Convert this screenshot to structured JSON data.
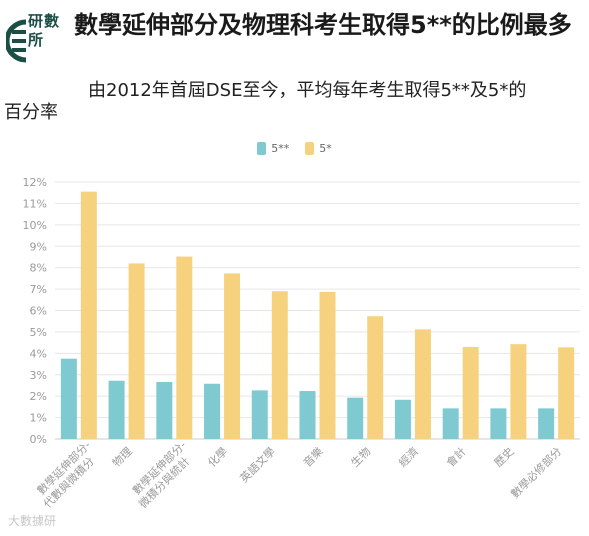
{
  "logo": {
    "text": "研數所"
  },
  "title": "數學延伸部分及物理科考生取得5**的比例最多",
  "subtitle": {
    "line1": "由2012年首屆DSE至今，平均每年考生取得5**及5*的",
    "line2": "百分率"
  },
  "watermark": "大數據研",
  "colors": {
    "s5ss": "#7ecad0",
    "s5s": "#f6d27f",
    "grid": "#e6e6e6",
    "axis": "#cccccc"
  },
  "chart_data": {
    "type": "bar",
    "categories": [
      "數學延伸部分-代數與微積分",
      "物理",
      "數學延伸部分-微積分與統計",
      "化學",
      "英語文學",
      "音樂",
      "生物",
      "經濟",
      "會計",
      "歷史",
      "數學必修部分"
    ],
    "category_lines": [
      [
        "數學延伸部分-",
        "代數與微積分"
      ],
      [
        "物理"
      ],
      [
        "數學延伸部分-",
        "微積分與統計"
      ],
      [
        "化學"
      ],
      [
        "英語文學"
      ],
      [
        "音樂"
      ],
      [
        "生物"
      ],
      [
        "經濟"
      ],
      [
        "會計"
      ],
      [
        "歷史"
      ],
      [
        "數學必修部分"
      ]
    ],
    "series": [
      {
        "name": "5**",
        "values": [
          3.75,
          2.72,
          2.66,
          2.58,
          2.27,
          2.24,
          1.93,
          1.83,
          1.43,
          1.43,
          1.43
        ]
      },
      {
        "name": "5*",
        "values": [
          11.55,
          8.2,
          8.52,
          7.73,
          6.9,
          6.87,
          5.73,
          5.12,
          4.3,
          4.43,
          4.28
        ]
      }
    ],
    "ylim": [
      0,
      12
    ],
    "yticks": [
      "0%",
      "1%",
      "2%",
      "3%",
      "4%",
      "5%",
      "6%",
      "7%",
      "8%",
      "9%",
      "10%",
      "11%",
      "12%"
    ],
    "legend_position": "top-center",
    "grid": true
  }
}
